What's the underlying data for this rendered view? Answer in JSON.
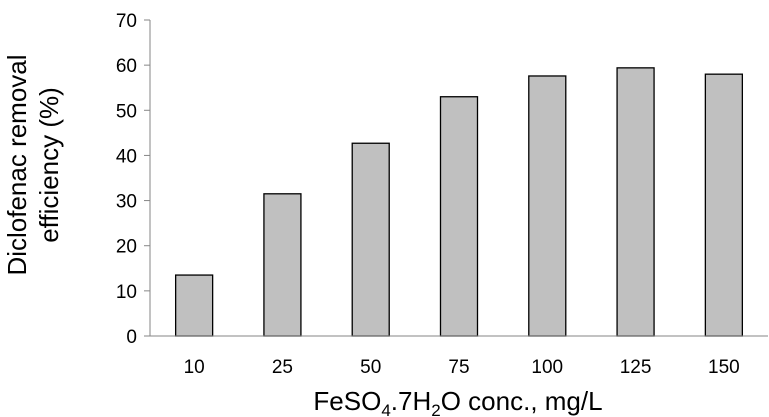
{
  "chart_data": {
    "type": "bar",
    "categories": [
      "10",
      "25",
      "50",
      "75",
      "100",
      "125",
      "150"
    ],
    "values": [
      13.5,
      31.5,
      42.7,
      53.0,
      57.6,
      59.4,
      58.0
    ],
    "title": "",
    "xlabel": {
      "parts": [
        {
          "text": "FeSO",
          "style": "normal"
        },
        {
          "text": "4",
          "style": "sub"
        },
        {
          "text": ".7H",
          "style": "normal"
        },
        {
          "text": "2",
          "style": "sub"
        },
        {
          "text": "O conc., mg/L",
          "style": "normal"
        }
      ]
    },
    "ylabel": {
      "line1": "Diclofenac removal",
      "line2": "efficiency (%)"
    },
    "ylim": [
      0,
      70
    ],
    "yticks": [
      "0",
      "10",
      "20",
      "30",
      "40",
      "50",
      "60",
      "70"
    ],
    "grid": false,
    "legend": "none",
    "bar_color": "#c0c0c0",
    "bar_edge_color": "#000000"
  }
}
